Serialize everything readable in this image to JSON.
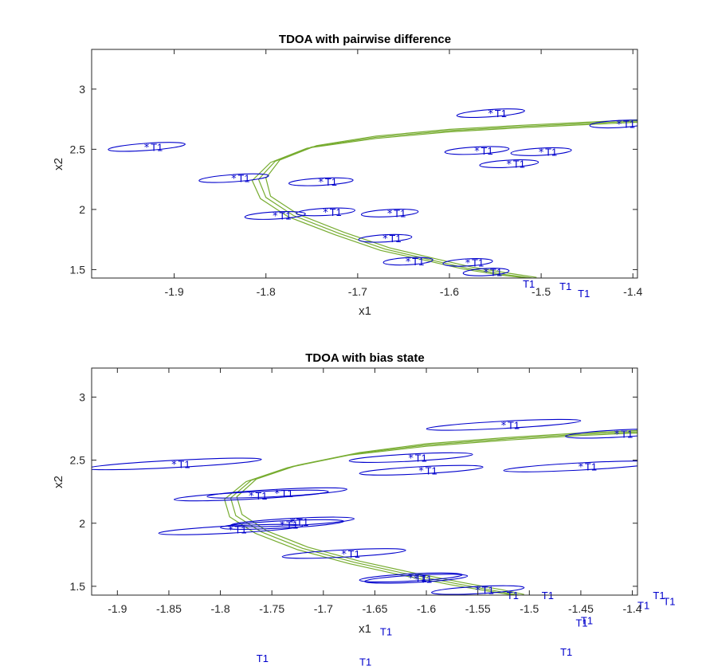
{
  "chart_data": [
    {
      "type": "scatter",
      "title": "TDOA with pairwise difference",
      "xlabel": "x1",
      "ylabel": "x2",
      "xlim": [
        -1.99,
        -1.395
      ],
      "ylim": [
        1.43,
        3.33
      ],
      "xticks": [
        -1.9,
        -1.8,
        -1.7,
        -1.6,
        -1.5,
        -1.4
      ],
      "yticks": [
        1.5,
        2,
        2.5,
        3
      ],
      "point_label": "T1",
      "curve_color": "#77ac30",
      "marker_color": "#0000cc",
      "targets": [
        {
          "x": -1.93,
          "y": 2.52,
          "rx": 0.042,
          "ry": 0.035,
          "angle": -4
        },
        {
          "x": -1.835,
          "y": 2.26,
          "rx": 0.038,
          "ry": 0.035,
          "angle": -4
        },
        {
          "x": -1.79,
          "y": 1.95,
          "rx": 0.033,
          "ry": 0.03,
          "angle": -3
        },
        {
          "x": -1.74,
          "y": 2.23,
          "rx": 0.035,
          "ry": 0.035,
          "angle": -3
        },
        {
          "x": -1.735,
          "y": 1.98,
          "rx": 0.032,
          "ry": 0.033,
          "angle": -3
        },
        {
          "x": -1.665,
          "y": 1.97,
          "rx": 0.031,
          "ry": 0.03,
          "angle": -3
        },
        {
          "x": -1.67,
          "y": 1.76,
          "rx": 0.029,
          "ry": 0.03,
          "angle": -3
        },
        {
          "x": -1.645,
          "y": 1.57,
          "rx": 0.027,
          "ry": 0.028,
          "angle": -3
        },
        {
          "x": -1.58,
          "y": 1.56,
          "rx": 0.027,
          "ry": 0.03,
          "angle": -3
        },
        {
          "x": -1.56,
          "y": 1.48,
          "rx": 0.025,
          "ry": 0.028,
          "angle": -3
        },
        {
          "x": -1.57,
          "y": 2.49,
          "rx": 0.035,
          "ry": 0.035,
          "angle": -3
        },
        {
          "x": -1.535,
          "y": 2.38,
          "rx": 0.032,
          "ry": 0.033,
          "angle": -3
        },
        {
          "x": -1.5,
          "y": 2.48,
          "rx": 0.033,
          "ry": 0.035,
          "angle": -3
        },
        {
          "x": -1.555,
          "y": 2.8,
          "rx": 0.037,
          "ry": 0.04,
          "angle": -4
        },
        {
          "x": -1.415,
          "y": 2.71,
          "rx": 0.032,
          "ry": 0.035,
          "angle": -3
        }
      ],
      "outside_labels": [
        {
          "x": -1.52,
          "y": 1.35
        },
        {
          "x": -1.48,
          "y": 1.33
        },
        {
          "x": -1.46,
          "y": 1.27
        }
      ],
      "curves": [
        [
          [
            -1.395,
            2.735
          ],
          [
            -1.45,
            2.715
          ],
          [
            -1.52,
            2.69
          ],
          [
            -1.6,
            2.655
          ],
          [
            -1.68,
            2.6
          ],
          [
            -1.75,
            2.52
          ],
          [
            -1.79,
            2.4
          ],
          [
            -1.808,
            2.25
          ],
          [
            -1.8,
            2.1
          ],
          [
            -1.77,
            1.95
          ],
          [
            -1.72,
            1.8
          ],
          [
            -1.67,
            1.67
          ],
          [
            -1.62,
            1.58
          ],
          [
            -1.58,
            1.51
          ],
          [
            -1.54,
            1.46
          ],
          [
            -1.51,
            1.43
          ]
        ],
        [
          [
            -1.395,
            2.745
          ],
          [
            -1.45,
            2.725
          ],
          [
            -1.52,
            2.7
          ],
          [
            -1.6,
            2.665
          ],
          [
            -1.68,
            2.61
          ],
          [
            -1.745,
            2.53
          ],
          [
            -1.785,
            2.41
          ],
          [
            -1.8,
            2.26
          ],
          [
            -1.795,
            2.11
          ],
          [
            -1.765,
            1.96
          ],
          [
            -1.715,
            1.81
          ],
          [
            -1.665,
            1.68
          ],
          [
            -1.615,
            1.59
          ],
          [
            -1.575,
            1.52
          ],
          [
            -1.535,
            1.47
          ],
          [
            -1.505,
            1.435
          ]
        ],
        [
          [
            -1.395,
            2.725
          ],
          [
            -1.45,
            2.705
          ],
          [
            -1.52,
            2.68
          ],
          [
            -1.6,
            2.645
          ],
          [
            -1.68,
            2.59
          ],
          [
            -1.755,
            2.51
          ],
          [
            -1.795,
            2.39
          ],
          [
            -1.815,
            2.24
          ],
          [
            -1.806,
            2.09
          ],
          [
            -1.776,
            1.94
          ],
          [
            -1.725,
            1.79
          ],
          [
            -1.675,
            1.66
          ],
          [
            -1.625,
            1.575
          ],
          [
            -1.585,
            1.505
          ],
          [
            -1.545,
            1.455
          ],
          [
            -1.515,
            1.43
          ]
        ]
      ]
    },
    {
      "type": "scatter",
      "title": "TDOA with bias state",
      "xlabel": "x1",
      "ylabel": "x2",
      "xlim": [
        -1.925,
        -1.395
      ],
      "ylim": [
        1.43,
        3.23
      ],
      "xticks": [
        -1.9,
        -1.85,
        -1.8,
        -1.75,
        -1.7,
        -1.65,
        -1.6,
        -1.55,
        -1.5,
        -1.45,
        -1.4
      ],
      "yticks": [
        1.5,
        2,
        2.5,
        3
      ],
      "point_label": "T1",
      "curve_color": "#77ac30",
      "marker_color": "#0000cc",
      "targets": [
        {
          "x": -1.845,
          "y": 2.47,
          "rx": 0.085,
          "ry": 0.048,
          "angle": -3
        },
        {
          "x": -1.77,
          "y": 2.22,
          "rx": 0.075,
          "ry": 0.05,
          "angle": -3
        },
        {
          "x": -1.745,
          "y": 2.24,
          "rx": 0.068,
          "ry": 0.045,
          "angle": -3
        },
        {
          "x": -1.79,
          "y": 1.95,
          "rx": 0.07,
          "ry": 0.045,
          "angle": -3
        },
        {
          "x": -1.74,
          "y": 1.99,
          "rx": 0.06,
          "ry": 0.045,
          "angle": -3
        },
        {
          "x": -1.73,
          "y": 2.01,
          "rx": 0.06,
          "ry": 0.045,
          "angle": -3
        },
        {
          "x": -1.68,
          "y": 1.76,
          "rx": 0.06,
          "ry": 0.04,
          "angle": -3
        },
        {
          "x": -1.615,
          "y": 2.52,
          "rx": 0.06,
          "ry": 0.045,
          "angle": -3
        },
        {
          "x": -1.605,
          "y": 2.42,
          "rx": 0.06,
          "ry": 0.045,
          "angle": -3
        },
        {
          "x": -1.615,
          "y": 1.57,
          "rx": 0.05,
          "ry": 0.035,
          "angle": -3
        },
        {
          "x": -1.61,
          "y": 1.56,
          "rx": 0.05,
          "ry": 0.035,
          "angle": -3
        },
        {
          "x": -1.55,
          "y": 1.47,
          "rx": 0.045,
          "ry": 0.035,
          "angle": -3
        },
        {
          "x": -1.525,
          "y": 2.78,
          "rx": 0.075,
          "ry": 0.05,
          "angle": -3
        },
        {
          "x": -1.45,
          "y": 2.45,
          "rx": 0.075,
          "ry": 0.045,
          "angle": -3
        },
        {
          "x": -1.415,
          "y": 2.71,
          "rx": 0.05,
          "ry": 0.035,
          "angle": -3
        }
      ],
      "outside_labels": [
        {
          "x": -1.645,
          "y": 1.11
        },
        {
          "x": -1.765,
          "y": 0.9
        },
        {
          "x": -1.665,
          "y": 0.87
        },
        {
          "x": -1.522,
          "y": 1.4
        },
        {
          "x": -1.488,
          "y": 1.4
        },
        {
          "x": -1.45,
          "y": 1.2
        },
        {
          "x": -1.455,
          "y": 1.18
        },
        {
          "x": -1.47,
          "y": 0.95
        },
        {
          "x": -1.395,
          "y": 1.32
        },
        {
          "x": -1.38,
          "y": 1.4
        },
        {
          "x": -1.37,
          "y": 1.35
        }
      ],
      "curves": [
        [
          [
            -1.395,
            2.725
          ],
          [
            -1.45,
            2.705
          ],
          [
            -1.52,
            2.67
          ],
          [
            -1.6,
            2.62
          ],
          [
            -1.67,
            2.55
          ],
          [
            -1.73,
            2.45
          ],
          [
            -1.77,
            2.34
          ],
          [
            -1.79,
            2.2
          ],
          [
            -1.785,
            2.06
          ],
          [
            -1.76,
            1.93
          ],
          [
            -1.72,
            1.8
          ],
          [
            -1.67,
            1.69
          ],
          [
            -1.62,
            1.6
          ],
          [
            -1.57,
            1.52
          ],
          [
            -1.53,
            1.46
          ],
          [
            -1.51,
            1.43
          ]
        ],
        [
          [
            -1.395,
            2.735
          ],
          [
            -1.45,
            2.715
          ],
          [
            -1.52,
            2.68
          ],
          [
            -1.6,
            2.63
          ],
          [
            -1.665,
            2.56
          ],
          [
            -1.725,
            2.46
          ],
          [
            -1.765,
            2.35
          ],
          [
            -1.784,
            2.21
          ],
          [
            -1.779,
            2.07
          ],
          [
            -1.755,
            1.94
          ],
          [
            -1.715,
            1.81
          ],
          [
            -1.665,
            1.7
          ],
          [
            -1.615,
            1.61
          ],
          [
            -1.565,
            1.53
          ],
          [
            -1.525,
            1.47
          ],
          [
            -1.505,
            1.435
          ]
        ],
        [
          [
            -1.395,
            2.715
          ],
          [
            -1.45,
            2.695
          ],
          [
            -1.52,
            2.66
          ],
          [
            -1.6,
            2.61
          ],
          [
            -1.675,
            2.54
          ],
          [
            -1.735,
            2.44
          ],
          [
            -1.775,
            2.33
          ],
          [
            -1.796,
            2.19
          ],
          [
            -1.791,
            2.05
          ],
          [
            -1.766,
            1.92
          ],
          [
            -1.725,
            1.79
          ],
          [
            -1.675,
            1.68
          ],
          [
            -1.625,
            1.59
          ],
          [
            -1.575,
            1.51
          ],
          [
            -1.535,
            1.455
          ],
          [
            -1.515,
            1.43
          ]
        ]
      ]
    }
  ]
}
